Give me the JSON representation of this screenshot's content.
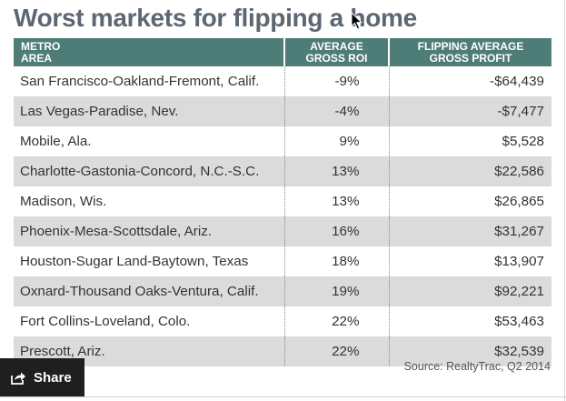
{
  "title": "Worst markets for flipping a home",
  "table": {
    "headers": {
      "metro_line1": "METRO",
      "metro_line2": "AREA",
      "roi_line1": "AVERAGE",
      "roi_line2": "GROSS ROI",
      "profit_line1": "FLIPPING AVERAGE",
      "profit_line2": "GROSS PROFIT"
    },
    "rows": [
      {
        "market": "San Francisco-Oakland-Fremont, Calif.",
        "roi": "-9%",
        "profit": "-$64,439"
      },
      {
        "market": "Las Vegas-Paradise, Nev.",
        "roi": "-4%",
        "profit": "-$7,477"
      },
      {
        "market": "Mobile, Ala.",
        "roi": "9%",
        "profit": "$5,528"
      },
      {
        "market": "Charlotte-Gastonia-Concord, N.C.-S.C.",
        "roi": "13%",
        "profit": "$22,586"
      },
      {
        "market": "Madison, Wis.",
        "roi": "13%",
        "profit": "$26,865"
      },
      {
        "market": "Phoenix-Mesa-Scottsdale, Ariz.",
        "roi": "16%",
        "profit": "$31,267"
      },
      {
        "market": "Houston-Sugar Land-Baytown, Texas",
        "roi": "18%",
        "profit": "$13,907"
      },
      {
        "market": "Oxnard-Thousand Oaks-Ventura, Calif.",
        "roi": "19%",
        "profit": "$92,221"
      },
      {
        "market": "Fort Collins-Loveland, Colo.",
        "roi": "22%",
        "profit": "$53,463"
      },
      {
        "market": "Prescott, Ariz.",
        "roi": "22%",
        "profit": "$32,539"
      }
    ]
  },
  "source": "Source: RealtyTrac, Q2 2014",
  "share": {
    "label": "Share",
    "icon": "share-icon"
  },
  "colors": {
    "header_bg": "#4e7d78",
    "title": "#5d6771",
    "stripe": "#dbdbdb",
    "share_bg": "#1f1f1f"
  }
}
